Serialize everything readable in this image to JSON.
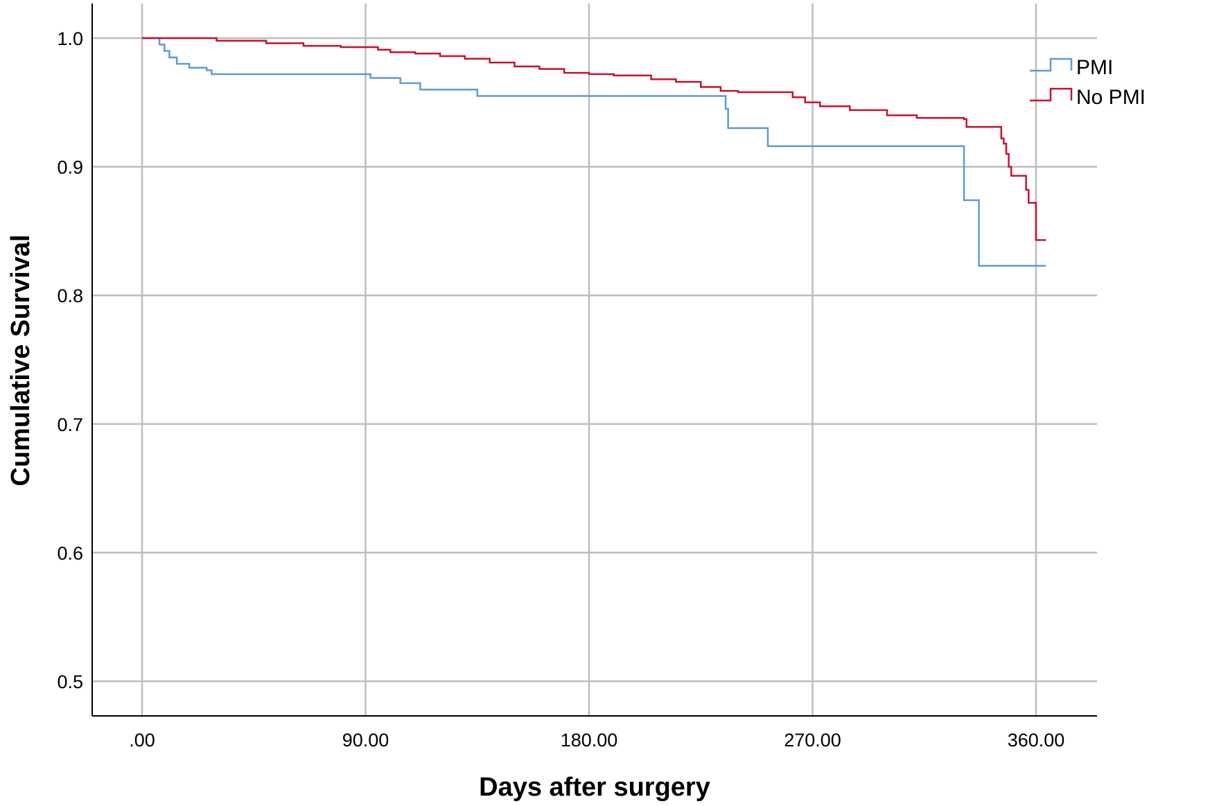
{
  "chart_data": {
    "type": "line",
    "step": true,
    "xlabel": "Days after surgery",
    "ylabel": "Cumulative Survival",
    "xlim": [
      -20,
      380
    ],
    "ylim": [
      0.47,
      1.03
    ],
    "x_ticks": [
      0,
      90,
      180,
      270,
      360
    ],
    "x_tick_labels": [
      ".00",
      "90.00",
      "180.00",
      "270.00",
      "360.00"
    ],
    "y_ticks": [
      0.5,
      0.6,
      0.7,
      0.8,
      0.9,
      1.0
    ],
    "y_tick_labels": [
      "0.5",
      "0.6",
      "0.7",
      "0.8",
      "0.9",
      "1.0"
    ],
    "grid": true,
    "legend_position": "right-top",
    "series": [
      {
        "name": "PMI",
        "color": "#5b9bd5",
        "points": [
          [
            0,
            1.0
          ],
          [
            6,
            1.0
          ],
          [
            7,
            0.995
          ],
          [
            9,
            0.99
          ],
          [
            11,
            0.985
          ],
          [
            14,
            0.98
          ],
          [
            19,
            0.977
          ],
          [
            26,
            0.975
          ],
          [
            28,
            0.972
          ],
          [
            90,
            0.972
          ],
          [
            92,
            0.969
          ],
          [
            103,
            0.969
          ],
          [
            104,
            0.965
          ],
          [
            110,
            0.965
          ],
          [
            112,
            0.96
          ],
          [
            134,
            0.96
          ],
          [
            135,
            0.955
          ],
          [
            235,
            0.955
          ],
          [
            235,
            0.945
          ],
          [
            236,
            0.93
          ],
          [
            251,
            0.93
          ],
          [
            252,
            0.916
          ],
          [
            330,
            0.916
          ],
          [
            331,
            0.874
          ],
          [
            336,
            0.874
          ],
          [
            337,
            0.823
          ],
          [
            364,
            0.823
          ]
        ]
      },
      {
        "name": "No PMI",
        "color": "#c8102e",
        "points": [
          [
            0,
            1.0
          ],
          [
            15,
            1.0
          ],
          [
            30,
            0.998
          ],
          [
            50,
            0.996
          ],
          [
            65,
            0.994
          ],
          [
            80,
            0.993
          ],
          [
            95,
            0.991
          ],
          [
            100,
            0.989
          ],
          [
            110,
            0.988
          ],
          [
            120,
            0.986
          ],
          [
            130,
            0.984
          ],
          [
            140,
            0.981
          ],
          [
            150,
            0.978
          ],
          [
            160,
            0.976
          ],
          [
            170,
            0.973
          ],
          [
            180,
            0.972
          ],
          [
            190,
            0.971
          ],
          [
            205,
            0.968
          ],
          [
            215,
            0.966
          ],
          [
            225,
            0.962
          ],
          [
            233,
            0.959
          ],
          [
            240,
            0.958
          ],
          [
            256,
            0.958
          ],
          [
            262,
            0.954
          ],
          [
            267,
            0.95
          ],
          [
            273,
            0.947
          ],
          [
            285,
            0.944
          ],
          [
            300,
            0.94
          ],
          [
            312,
            0.938
          ],
          [
            322,
            0.938
          ],
          [
            331,
            0.937
          ],
          [
            332,
            0.931
          ],
          [
            346,
            0.931
          ],
          [
            346,
            0.922
          ],
          [
            347,
            0.918
          ],
          [
            348,
            0.91
          ],
          [
            349,
            0.9
          ],
          [
            350,
            0.893
          ],
          [
            355,
            0.893
          ],
          [
            356,
            0.882
          ],
          [
            357,
            0.872
          ],
          [
            360,
            0.872
          ],
          [
            360,
            0.843
          ],
          [
            364,
            0.843
          ]
        ]
      }
    ]
  }
}
